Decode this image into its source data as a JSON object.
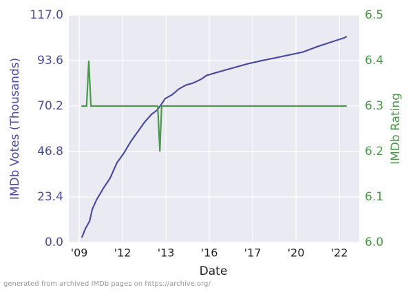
{
  "chart_data": {
    "type": "line",
    "x_label": "Date",
    "y_label": "IMDb Votes (Thousands)",
    "y2_label": "IMDb Rating",
    "footnote": "generated from archived IMDb pages on https://archive.org/",
    "xlim": [
      -0.24,
      6.46
    ],
    "xticks": [
      {
        "value": 0,
        "label": "'09"
      },
      {
        "value": 1,
        "label": "'12"
      },
      {
        "value": 2,
        "label": "'13"
      },
      {
        "value": 3,
        "label": "'16"
      },
      {
        "value": 4,
        "label": "'17"
      },
      {
        "value": 5,
        "label": "'20"
      },
      {
        "value": 6,
        "label": "'22"
      }
    ],
    "ylim": [
      0,
      117
    ],
    "yticks": [
      {
        "value": 0,
        "label": "0.0"
      },
      23.4,
      46.8,
      70.2,
      93.6,
      {
        "value": 117,
        "label": "117.0"
      }
    ],
    "y2lim": [
      6.0,
      6.5
    ],
    "y2ticks": [
      {
        "value": 6.0,
        "label": "6.0"
      },
      6.1,
      6.2,
      6.3,
      6.4,
      {
        "value": 6.5,
        "label": "6.5"
      }
    ],
    "grid": true,
    "series": [
      {
        "name": "IMDb Votes",
        "color": "#4b4b9f",
        "x": [
          0.06,
          0.14,
          0.24,
          0.3,
          0.4,
          0.56,
          0.71,
          0.87,
          1.03,
          1.19,
          1.35,
          1.51,
          1.67,
          1.79,
          1.86,
          1.98,
          2.14,
          2.3,
          2.46,
          2.62,
          2.81,
          2.94,
          3.25,
          3.57,
          3.89,
          4.21,
          4.52,
          4.84,
          5.16,
          5.48,
          5.79,
          6.11,
          6.17
        ],
        "values": [
          2.5,
          7,
          11,
          17,
          22,
          28,
          33,
          41,
          46,
          52,
          57,
          62,
          66,
          68,
          70,
          74,
          76,
          79,
          81,
          82,
          84,
          86,
          88,
          90,
          92,
          93.6,
          95,
          96.5,
          98,
          100.7,
          103,
          105.3,
          106
        ]
      },
      {
        "name": "IMDb Rating",
        "color": "#4a9a4a",
        "axis": "y2",
        "x": [
          0.05,
          0.17,
          0.22,
          0.27,
          1.81,
          1.86,
          1.9,
          6.17
        ],
        "values": [
          6.3,
          6.3,
          6.4,
          6.3,
          6.3,
          6.2,
          6.3,
          6.3
        ]
      }
    ]
  }
}
